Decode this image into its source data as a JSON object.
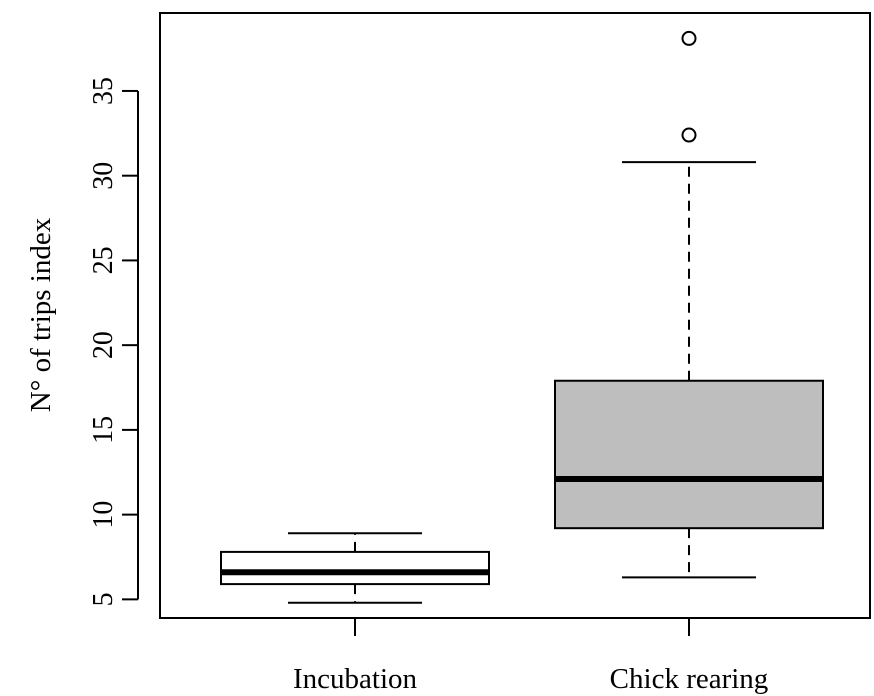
{
  "chart_data": {
    "type": "box",
    "ylabel": "N° of trips index",
    "xlabel": "",
    "title": "",
    "ylim": [
      3.9,
      39.6
    ],
    "yticks": [
      5,
      10,
      15,
      20,
      25,
      30,
      35
    ],
    "categories": [
      "Incubation",
      "Chick rearing"
    ],
    "boxes": [
      {
        "category": "Incubation",
        "whisker_low": 4.8,
        "q1": 5.9,
        "median": 6.6,
        "q3": 7.8,
        "whisker_high": 8.9,
        "outliers": [],
        "fill": "#ffffff"
      },
      {
        "category": "Chick rearing",
        "whisker_low": 6.3,
        "q1": 9.2,
        "median": 12.1,
        "q3": 17.9,
        "whisker_high": 30.8,
        "outliers": [
          32.4,
          38.1
        ],
        "fill": "#bebebe"
      }
    ]
  }
}
